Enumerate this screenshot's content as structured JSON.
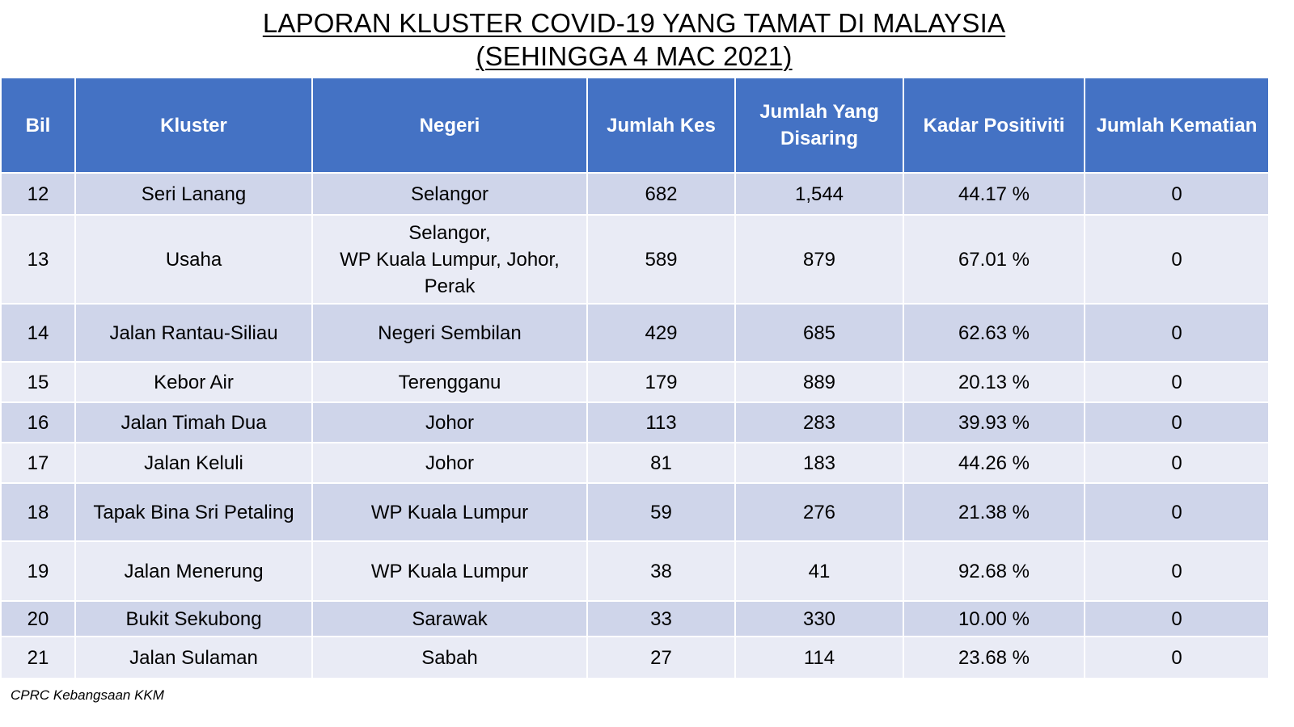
{
  "title": {
    "line1": "LAPORAN KLUSTER COVID-19 YANG TAMAT DI MALAYSIA",
    "line2": "(SEHINGGA  4 MAC 2021)"
  },
  "table": {
    "headers": {
      "bil": "Bil",
      "kluster": "Kluster",
      "negeri": "Negeri",
      "jumlah_kes": "Jumlah Kes",
      "jumlah_disaring_1": "Jumlah Yang",
      "jumlah_disaring_2": "Disaring",
      "kadar_positiviti": "Kadar Positiviti",
      "jumlah_kematian": "Jumlah Kematian"
    },
    "rows": [
      {
        "bil": "12",
        "kluster": "Seri Lanang",
        "negeri": [
          "Selangor"
        ],
        "kes": "682",
        "disaring": "1,544",
        "positiviti": "44.17 %",
        "kematian": "0"
      },
      {
        "bil": "13",
        "kluster": "Usaha",
        "negeri": [
          "Selangor,",
          "WP Kuala Lumpur, Johor,",
          "Perak"
        ],
        "kes": "589",
        "disaring": "879",
        "positiviti": "67.01 %",
        "kematian": "0"
      },
      {
        "bil": "14",
        "kluster": "Jalan Rantau-Siliau",
        "negeri": [
          "Negeri Sembilan"
        ],
        "kes": "429",
        "disaring": "685",
        "positiviti": "62.63 %",
        "kematian": "0"
      },
      {
        "bil": "15",
        "kluster": "Kebor Air",
        "negeri": [
          "Terengganu"
        ],
        "kes": "179",
        "disaring": "889",
        "positiviti": "20.13 %",
        "kematian": "0"
      },
      {
        "bil": "16",
        "kluster": "Jalan Timah Dua",
        "negeri": [
          "Johor"
        ],
        "kes": "113",
        "disaring": "283",
        "positiviti": "39.93 %",
        "kematian": "0"
      },
      {
        "bil": "17",
        "kluster": "Jalan Keluli",
        "negeri": [
          "Johor"
        ],
        "kes": "81",
        "disaring": "183",
        "positiviti": "44.26 %",
        "kematian": "0"
      },
      {
        "bil": "18",
        "kluster": "Tapak Bina Sri Petaling",
        "negeri": [
          "WP Kuala Lumpur"
        ],
        "kes": "59",
        "disaring": "276",
        "positiviti": "21.38 %",
        "kematian": "0"
      },
      {
        "bil": "19",
        "kluster": "Jalan Menerung",
        "negeri": [
          "WP Kuala Lumpur"
        ],
        "kes": "38",
        "disaring": "41",
        "positiviti": "92.68 %",
        "kematian": "0"
      },
      {
        "bil": "20",
        "kluster": "Bukit Sekubong",
        "negeri": [
          "Sarawak"
        ],
        "kes": "33",
        "disaring": "330",
        "positiviti": "10.00 %",
        "kematian": "0"
      },
      {
        "bil": "21",
        "kluster": "Jalan Sulaman",
        "negeri": [
          "Sabah"
        ],
        "kes": "27",
        "disaring": "114",
        "positiviti": "23.68 %",
        "kematian": "0"
      }
    ]
  },
  "footer": "CPRC Kebangsaan KKM",
  "colors": {
    "header_bg": "#4472c4",
    "row_odd": "#cfd5ea",
    "row_even": "#e9ebf5"
  }
}
